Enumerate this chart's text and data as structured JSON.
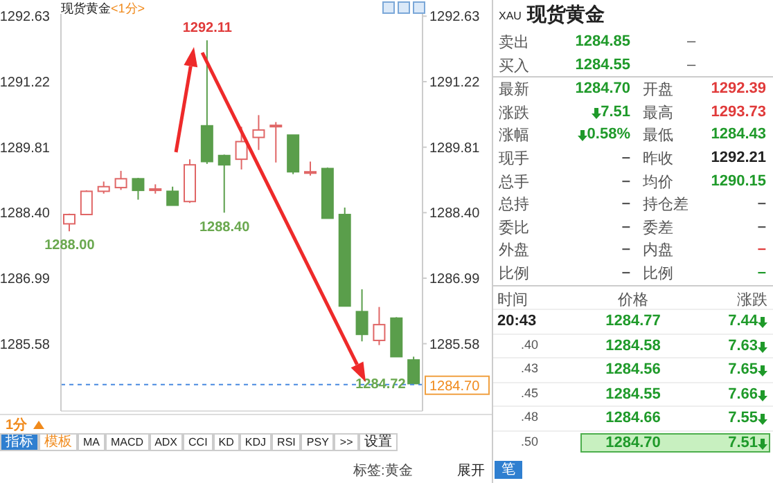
{
  "chart_data": [
    {
      "type": "candlestick",
      "title": "现货黄金",
      "subtitle": "<1分>",
      "categories": [
        null,
        null,
        null,
        null,
        null,
        null,
        null,
        null,
        null,
        null,
        null,
        null,
        null,
        null,
        null,
        null,
        null,
        null,
        null,
        null,
        null
      ],
      "ohlc": [
        [
          1288.16,
          1288.38,
          1288.0,
          1288.36
        ],
        [
          1288.36,
          1288.88,
          1288.36,
          1288.86
        ],
        [
          1288.86,
          1289.07,
          1288.81,
          1288.96
        ],
        [
          1288.94,
          1289.3,
          1288.89,
          1289.13
        ],
        [
          1289.13,
          1289.15,
          1288.68,
          1288.88
        ],
        [
          1288.89,
          1289.01,
          1288.81,
          1288.91
        ],
        [
          1288.86,
          1288.96,
          1288.56,
          1288.56
        ],
        [
          1288.64,
          1289.55,
          1288.61,
          1289.43
        ],
        [
          1290.27,
          1292.11,
          1289.45,
          1289.5
        ],
        [
          1289.63,
          1289.65,
          1288.4,
          1289.43
        ],
        [
          1289.55,
          1290.25,
          1289.33,
          1289.93
        ],
        [
          1290.02,
          1290.5,
          1289.75,
          1290.18
        ],
        [
          1290.25,
          1290.35,
          1289.48,
          1290.28
        ],
        [
          1290.07,
          1290.07,
          1289.23,
          1289.28
        ],
        [
          1289.25,
          1289.5,
          1289.2,
          1289.28
        ],
        [
          1289.35,
          1289.37,
          1288.28,
          1288.28
        ],
        [
          1288.36,
          1288.51,
          1286.39,
          1286.39
        ],
        [
          1286.27,
          1286.75,
          1285.63,
          1285.78
        ],
        [
          1285.65,
          1286.37,
          1285.55,
          1285.99
        ],
        [
          1286.13,
          1286.15,
          1285.3,
          1285.3
        ],
        [
          1285.23,
          1285.3,
          1284.72,
          1284.72
        ]
      ],
      "colors": [
        "#e06666",
        "#e06666",
        "#e06666",
        "#e06666",
        "#5a9e4b",
        "#e06666",
        "#5a9e4b",
        "#e06666",
        "#5a9e4b",
        "#5a9e4b",
        "#e06666",
        "#e06666",
        "#e06666",
        "#5a9e4b",
        "#e06666",
        "#5a9e4b",
        "#5a9e4b",
        "#5a9e4b",
        "#e06666",
        "#5a9e4b",
        "#5a9e4b"
      ],
      "ylim": [
        1284.13,
        1292.68
      ],
      "yticks": [
        1285.58,
        1286.99,
        {
          "value": 1288.4,
          "label": "1288.40"
        },
        1289.81,
        1291.22,
        1292.63
      ],
      "y2lim": [
        1284.13,
        1292.68
      ],
      "y2ticks": [
        1285.58,
        1286.99,
        {
          "value": 1288.4,
          "label": "1288.40"
        },
        1289.81,
        1291.22,
        1292.63
      ],
      "ref_lines": [
        {
          "axis": "y2",
          "value": 1284.7,
          "label": "1284.70",
          "color": "#4a8ae0",
          "line_style": "dashed"
        }
      ],
      "annotations": [
        {
          "text": "1292.11",
          "y": 1292.11
        },
        {
          "text": "1288.00",
          "y": 1288.0
        },
        {
          "text": "1288.40",
          "y": 1288.4
        },
        {
          "text": "1284.72",
          "y": 1284.72
        },
        "1分",
        "指标",
        "模板",
        "MA",
        "MACD",
        "ADX",
        "CCI",
        "KD",
        "KDJ",
        "RSI",
        "PSY",
        ">>",
        "设置",
        "标签:黄金",
        "展开"
      ]
    },
    {
      "type": "other",
      "title": "现货黄金",
      "subtitle": "XAU",
      "annotations": [
        "卖出",
        "1284.85",
        "–",
        "买入",
        "1284.55",
        "–",
        "最新",
        "1284.70",
        "开盘",
        "1292.39",
        "涨跌",
        "7.51",
        "最高",
        "1293.73",
        "涨幅",
        "0.58%",
        "最低",
        "1284.43",
        "现手",
        "–",
        "昨收",
        "1292.21",
        "总手",
        "–",
        "均价",
        "1290.15",
        "总持",
        "–",
        "持仓差",
        "–",
        "委比",
        "–",
        "委差",
        "–",
        "外盘",
        "–",
        "内盘",
        "–",
        "比例",
        "–",
        "比例",
        "–",
        "时间",
        "价格",
        "涨跌",
        "20:43",
        "1284.77",
        "7.44",
        ".40",
        "1284.58",
        "7.63",
        ".43",
        "1284.56",
        "7.65",
        ".45",
        "1284.55",
        "7.66",
        ".48",
        "1284.66",
        "7.55",
        ".50",
        "1284.70",
        "7.51",
        "笔"
      ]
    }
  ]
}
